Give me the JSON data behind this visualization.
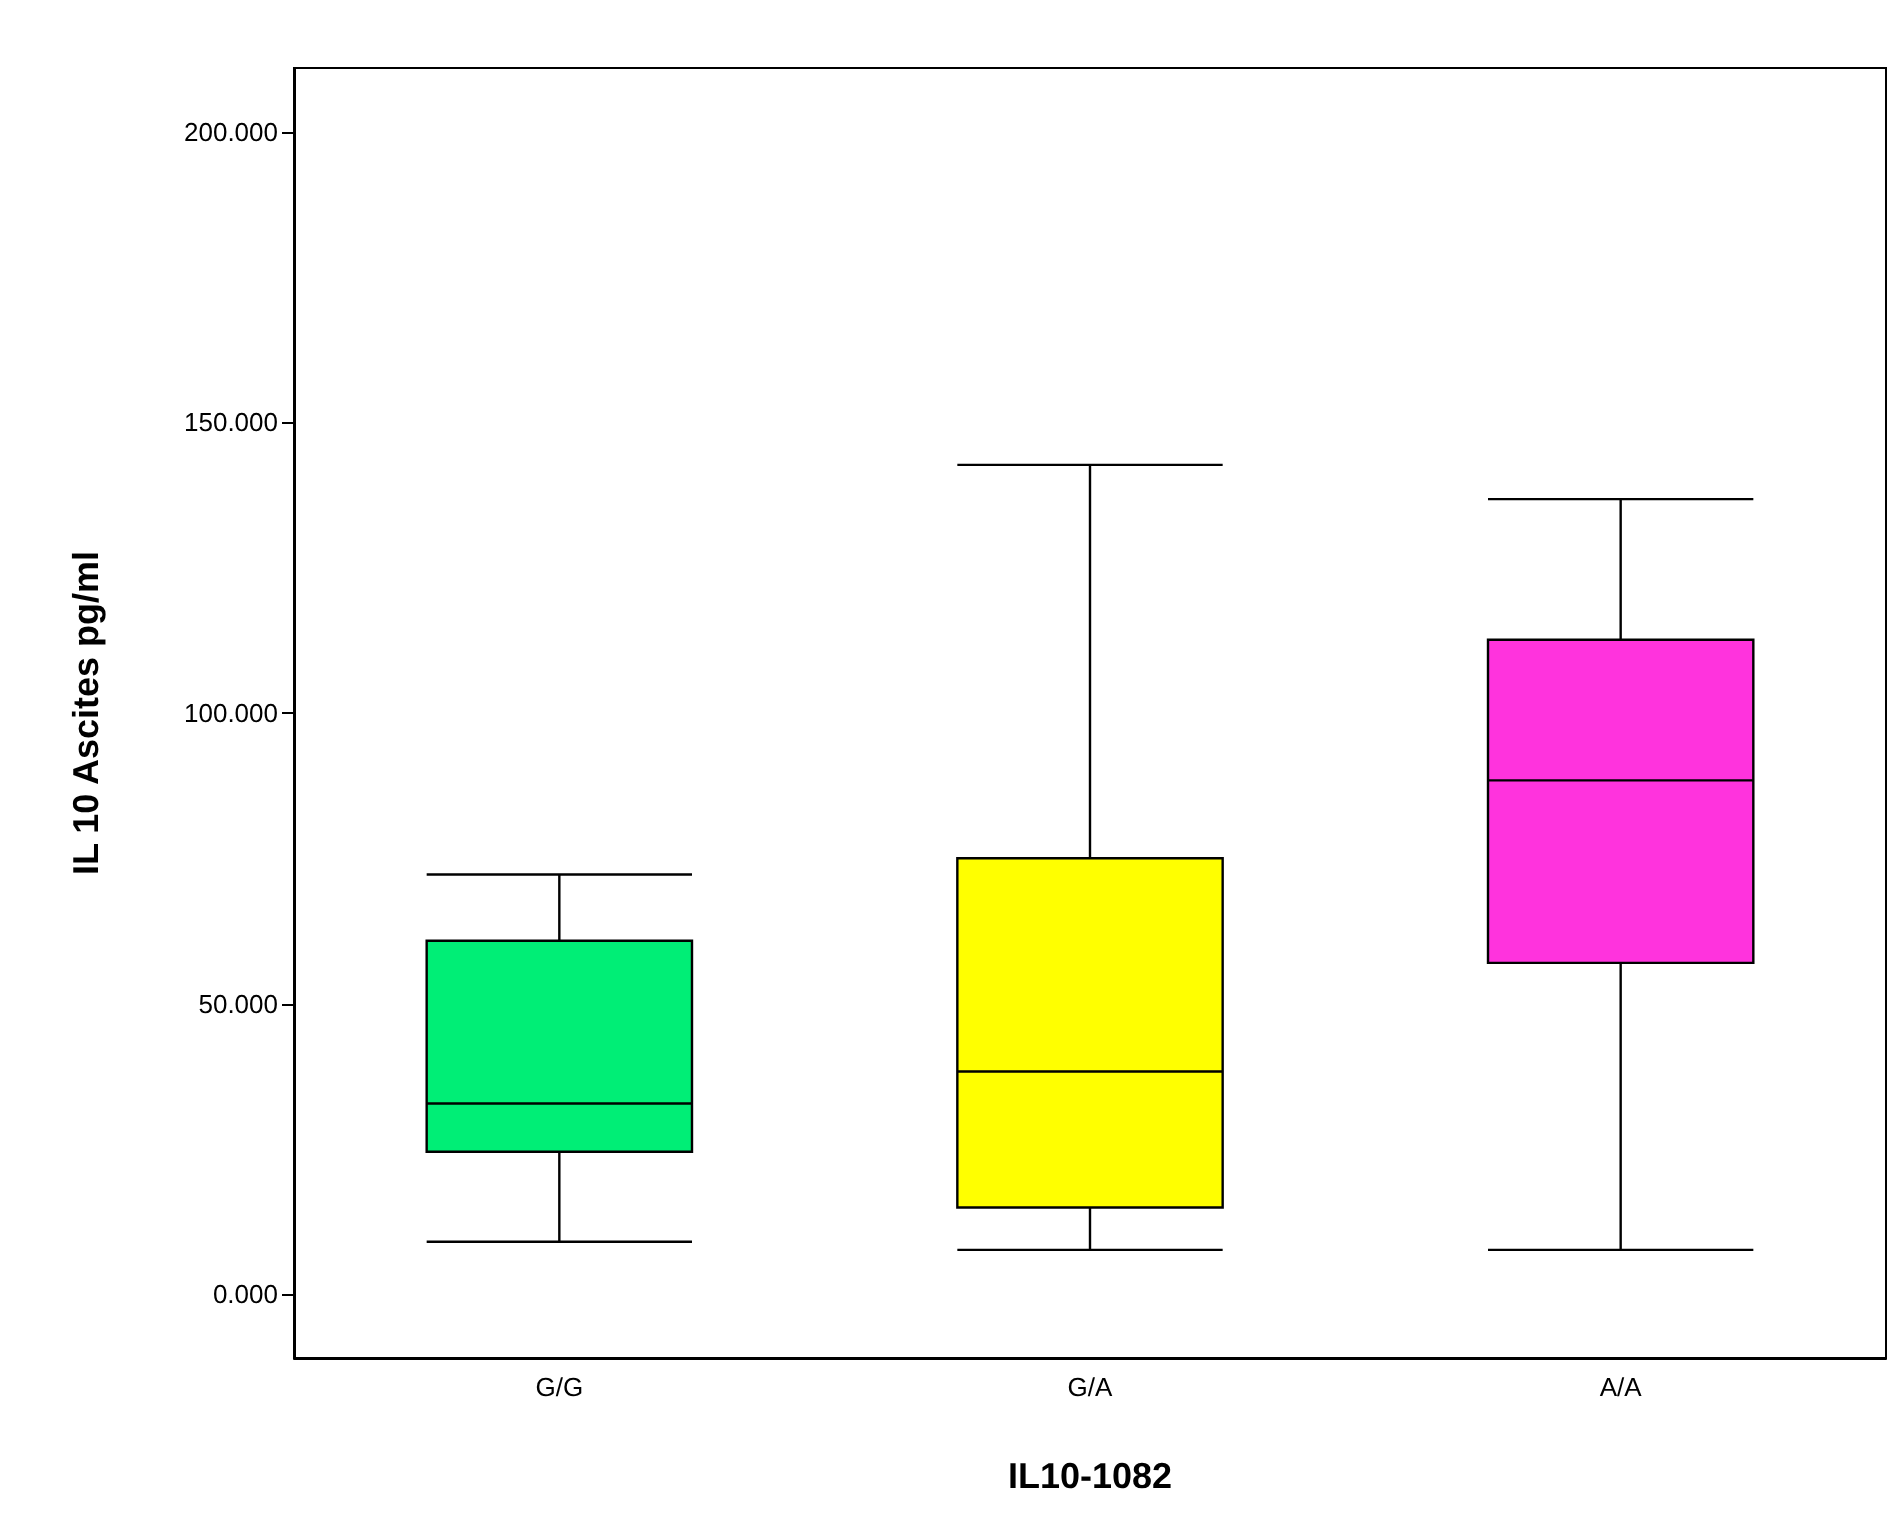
{
  "chart_data": {
    "type": "box",
    "xlabel": "IL10-1082",
    "ylabel": "IL 10 Ascites pg/ml",
    "categories": [
      "G/G",
      "G/A",
      "A/A"
    ],
    "boxes": [
      {
        "low": 9,
        "q1": 24.5,
        "median": 32.8,
        "q3": 60.8,
        "high": 72.2
      },
      {
        "low": 7.6,
        "q1": 14.9,
        "median": 38.3,
        "q3": 75,
        "high": 142.7
      },
      {
        "low": 7.6,
        "q1": 57,
        "median": 88.4,
        "q3": 112.6,
        "high": 136.8
      }
    ],
    "colors": [
      "#00ee76",
      "#ffff00",
      "#ff33dd"
    ],
    "ylim": [
      -11,
      211
    ],
    "yticks": [
      {
        "value": 0,
        "label": "0.000"
      },
      {
        "value": 50,
        "label": "50.000"
      },
      {
        "value": 100,
        "label": "100.000"
      },
      {
        "value": 150,
        "label": "150.000"
      },
      {
        "value": 200,
        "label": "200.000"
      }
    ],
    "grid": false
  }
}
